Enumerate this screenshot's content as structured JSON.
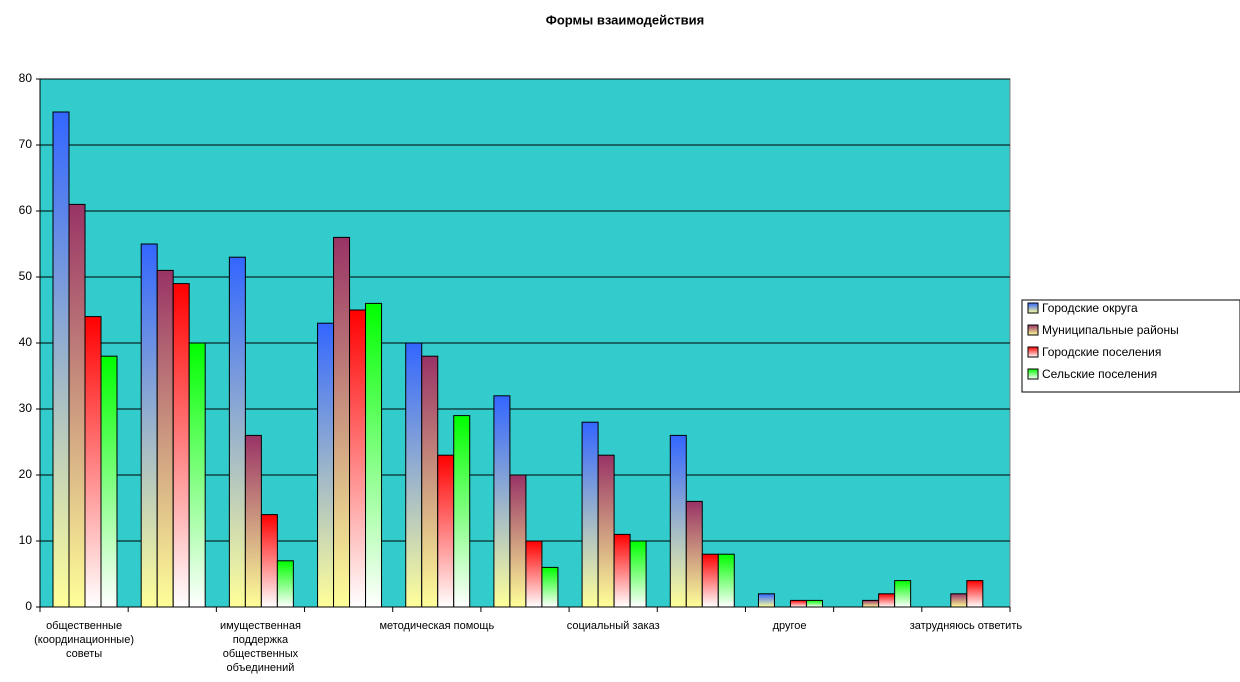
{
  "chart_data": {
    "type": "bar",
    "title": "Формы взаимодействия",
    "categories": [
      "общественные (координационные) советы",
      null,
      "имущественная поддержка общественных объединений",
      null,
      "методическая помощь",
      null,
      "социальный заказ",
      null,
      "другое",
      null,
      "затрудняюсь ответить"
    ],
    "series": [
      {
        "name": "Городские округа",
        "color": "#3366ff",
        "values": [
          75,
          55,
          53,
          43,
          40,
          32,
          28,
          26,
          2,
          0,
          0
        ]
      },
      {
        "name": "Муниципальные районы",
        "color": "#993366",
        "values": [
          61,
          51,
          26,
          56,
          38,
          20,
          23,
          16,
          0,
          1,
          2
        ]
      },
      {
        "name": "Городские поселения",
        "color": "#ff0000",
        "values": [
          44,
          49,
          14,
          45,
          23,
          10,
          11,
          8,
          1,
          2,
          4
        ]
      },
      {
        "name": "Сельские поселения",
        "color": "#00ff00",
        "values": [
          38,
          40,
          7,
          46,
          29,
          6,
          10,
          8,
          1,
          4,
          0
        ]
      }
    ],
    "ylim": [
      0,
      80
    ],
    "yticks": [
      0,
      10,
      20,
      30,
      40,
      50,
      60,
      70,
      80
    ],
    "grid": true,
    "legend": "right"
  }
}
